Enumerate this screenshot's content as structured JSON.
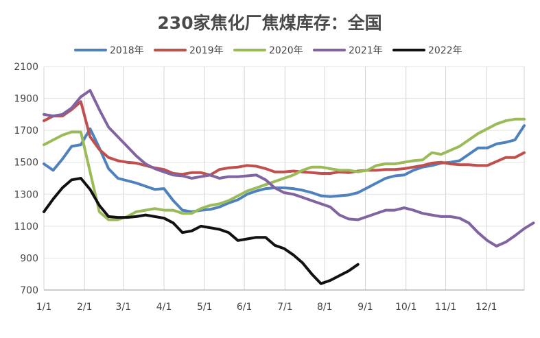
{
  "chart_data": {
    "type": "line",
    "title": "230家焦化厂焦煤库存：全国",
    "xlabel": "",
    "ylabel": "",
    "x_ticks": [
      "1/1",
      "2/1",
      "3/1",
      "4/1",
      "5/1",
      "6/1",
      "7/1",
      "8/1",
      "9/1",
      "10/1",
      "11/1",
      "12/1"
    ],
    "x_range": [
      1,
      53
    ],
    "ylim": [
      700,
      2100
    ],
    "y_ticks": [
      700,
      900,
      1100,
      1300,
      1500,
      1700,
      1900,
      2100
    ],
    "grid": "vertical",
    "legend_position": "top",
    "series": [
      {
        "name": "2018年",
        "color": "#4f81bd",
        "points": [
          [
            1,
            1490
          ],
          [
            2,
            1450
          ],
          [
            3,
            1520
          ],
          [
            4,
            1600
          ],
          [
            5,
            1610
          ],
          [
            6,
            1710
          ],
          [
            7,
            1590
          ],
          [
            8,
            1460
          ],
          [
            9,
            1400
          ],
          [
            10,
            1385
          ],
          [
            11,
            1370
          ],
          [
            12,
            1350
          ],
          [
            13,
            1330
          ],
          [
            14,
            1335
          ],
          [
            15,
            1260
          ],
          [
            16,
            1200
          ],
          [
            17,
            1190
          ],
          [
            18,
            1200
          ],
          [
            19,
            1205
          ],
          [
            20,
            1220
          ],
          [
            21,
            1245
          ],
          [
            22,
            1265
          ],
          [
            23,
            1300
          ],
          [
            24,
            1320
          ],
          [
            25,
            1335
          ],
          [
            26,
            1340
          ],
          [
            27,
            1340
          ],
          [
            28,
            1335
          ],
          [
            29,
            1325
          ],
          [
            30,
            1310
          ],
          [
            31,
            1290
          ],
          [
            32,
            1285
          ],
          [
            33,
            1290
          ],
          [
            34,
            1295
          ],
          [
            35,
            1310
          ],
          [
            36,
            1340
          ],
          [
            37,
            1370
          ],
          [
            38,
            1400
          ],
          [
            39,
            1415
          ],
          [
            40,
            1420
          ],
          [
            41,
            1450
          ],
          [
            42,
            1470
          ],
          [
            43,
            1480
          ],
          [
            44,
            1495
          ],
          [
            45,
            1500
          ],
          [
            46,
            1510
          ],
          [
            47,
            1550
          ],
          [
            48,
            1590
          ],
          [
            49,
            1590
          ],
          [
            50,
            1615
          ],
          [
            51,
            1625
          ],
          [
            52,
            1640
          ],
          [
            53,
            1730
          ]
        ]
      },
      {
        "name": "2019年",
        "color": "#c0504d",
        "points": [
          [
            1,
            1760
          ],
          [
            2,
            1790
          ],
          [
            3,
            1790
          ],
          [
            4,
            1830
          ],
          [
            5,
            1880
          ],
          [
            6,
            1660
          ],
          [
            7,
            1580
          ],
          [
            8,
            1530
          ],
          [
            9,
            1510
          ],
          [
            10,
            1500
          ],
          [
            11,
            1495
          ],
          [
            12,
            1480
          ],
          [
            13,
            1465
          ],
          [
            14,
            1455
          ],
          [
            15,
            1430
          ],
          [
            16,
            1425
          ],
          [
            17,
            1435
          ],
          [
            18,
            1435
          ],
          [
            19,
            1420
          ],
          [
            20,
            1455
          ],
          [
            21,
            1465
          ],
          [
            22,
            1470
          ],
          [
            23,
            1480
          ],
          [
            24,
            1475
          ],
          [
            25,
            1460
          ],
          [
            26,
            1440
          ],
          [
            27,
            1440
          ],
          [
            28,
            1445
          ],
          [
            29,
            1440
          ],
          [
            30,
            1435
          ],
          [
            31,
            1430
          ],
          [
            32,
            1430
          ],
          [
            33,
            1440
          ],
          [
            34,
            1435
          ],
          [
            35,
            1445
          ],
          [
            36,
            1450
          ],
          [
            37,
            1450
          ],
          [
            38,
            1455
          ],
          [
            39,
            1455
          ],
          [
            40,
            1460
          ],
          [
            41,
            1470
          ],
          [
            42,
            1480
          ],
          [
            43,
            1495
          ],
          [
            44,
            1500
          ],
          [
            45,
            1490
          ],
          [
            46,
            1485
          ],
          [
            47,
            1485
          ],
          [
            48,
            1480
          ],
          [
            49,
            1480
          ],
          [
            50,
            1505
          ],
          [
            51,
            1530
          ],
          [
            52,
            1530
          ],
          [
            53,
            1560
          ]
        ]
      },
      {
        "name": "2020年",
        "color": "#9bbb59",
        "points": [
          [
            1,
            1610
          ],
          [
            2,
            1640
          ],
          [
            3,
            1670
          ],
          [
            4,
            1690
          ],
          [
            5,
            1690
          ],
          [
            6,
            1440
          ],
          [
            7,
            1190
          ],
          [
            8,
            1140
          ],
          [
            9,
            1140
          ],
          [
            10,
            1160
          ],
          [
            11,
            1190
          ],
          [
            12,
            1200
          ],
          [
            13,
            1210
          ],
          [
            14,
            1200
          ],
          [
            15,
            1200
          ],
          [
            16,
            1180
          ],
          [
            17,
            1180
          ],
          [
            18,
            1210
          ],
          [
            19,
            1230
          ],
          [
            20,
            1240
          ],
          [
            21,
            1260
          ],
          [
            22,
            1290
          ],
          [
            23,
            1320
          ],
          [
            24,
            1340
          ],
          [
            25,
            1360
          ],
          [
            26,
            1380
          ],
          [
            27,
            1400
          ],
          [
            28,
            1420
          ],
          [
            29,
            1450
          ],
          [
            30,
            1470
          ],
          [
            31,
            1470
          ],
          [
            32,
            1460
          ],
          [
            33,
            1450
          ],
          [
            34,
            1450
          ],
          [
            35,
            1440
          ],
          [
            36,
            1450
          ],
          [
            37,
            1480
          ],
          [
            38,
            1490
          ],
          [
            39,
            1490
          ],
          [
            40,
            1500
          ],
          [
            41,
            1510
          ],
          [
            42,
            1515
          ],
          [
            43,
            1560
          ],
          [
            44,
            1550
          ],
          [
            45,
            1575
          ],
          [
            46,
            1600
          ],
          [
            47,
            1640
          ],
          [
            48,
            1680
          ],
          [
            49,
            1710
          ],
          [
            50,
            1740
          ],
          [
            51,
            1760
          ],
          [
            52,
            1770
          ],
          [
            53,
            1770
          ]
        ]
      },
      {
        "name": "2021年",
        "color": "#8064a2",
        "points": [
          [
            1,
            1800
          ],
          [
            2,
            1790
          ],
          [
            3,
            1800
          ],
          [
            4,
            1840
          ],
          [
            5,
            1910
          ],
          [
            6,
            1950
          ],
          [
            7,
            1830
          ],
          [
            8,
            1720
          ],
          [
            9,
            1660
          ],
          [
            10,
            1600
          ],
          [
            11,
            1540
          ],
          [
            12,
            1490
          ],
          [
            13,
            1460
          ],
          [
            14,
            1440
          ],
          [
            15,
            1420
          ],
          [
            16,
            1415
          ],
          [
            17,
            1400
          ],
          [
            18,
            1410
          ],
          [
            19,
            1420
          ],
          [
            20,
            1400
          ],
          [
            21,
            1410
          ],
          [
            22,
            1410
          ],
          [
            23,
            1415
          ],
          [
            24,
            1420
          ],
          [
            25,
            1390
          ],
          [
            26,
            1340
          ],
          [
            27,
            1310
          ],
          [
            28,
            1300
          ],
          [
            29,
            1280
          ],
          [
            30,
            1260
          ],
          [
            31,
            1240
          ],
          [
            32,
            1220
          ],
          [
            33,
            1170
          ],
          [
            34,
            1145
          ],
          [
            35,
            1140
          ],
          [
            36,
            1160
          ],
          [
            37,
            1180
          ],
          [
            38,
            1200
          ],
          [
            39,
            1200
          ],
          [
            40,
            1215
          ],
          [
            41,
            1200
          ],
          [
            42,
            1180
          ],
          [
            43,
            1170
          ],
          [
            44,
            1160
          ],
          [
            45,
            1160
          ],
          [
            46,
            1150
          ],
          [
            47,
            1120
          ],
          [
            48,
            1060
          ],
          [
            49,
            1010
          ],
          [
            50,
            975
          ],
          [
            51,
            1000
          ],
          [
            52,
            1040
          ],
          [
            53,
            1085
          ],
          [
            54,
            1120
          ]
        ]
      },
      {
        "name": "2022年",
        "color": "#111111",
        "points": [
          [
            1,
            1190
          ],
          [
            2,
            1270
          ],
          [
            3,
            1340
          ],
          [
            4,
            1390
          ],
          [
            5,
            1400
          ],
          [
            6,
            1330
          ],
          [
            7,
            1230
          ],
          [
            8,
            1160
          ],
          [
            9,
            1155
          ],
          [
            10,
            1155
          ],
          [
            11,
            1160
          ],
          [
            12,
            1170
          ],
          [
            13,
            1160
          ],
          [
            14,
            1150
          ],
          [
            15,
            1120
          ],
          [
            16,
            1060
          ],
          [
            17,
            1070
          ],
          [
            18,
            1100
          ],
          [
            19,
            1090
          ],
          [
            20,
            1080
          ],
          [
            21,
            1060
          ],
          [
            22,
            1010
          ],
          [
            23,
            1020
          ],
          [
            24,
            1030
          ],
          [
            25,
            1030
          ],
          [
            26,
            980
          ],
          [
            27,
            960
          ],
          [
            28,
            920
          ],
          [
            29,
            870
          ],
          [
            30,
            800
          ],
          [
            31,
            740
          ],
          [
            32,
            760
          ],
          [
            33,
            790
          ],
          [
            34,
            820
          ],
          [
            35,
            860
          ]
        ]
      }
    ]
  }
}
